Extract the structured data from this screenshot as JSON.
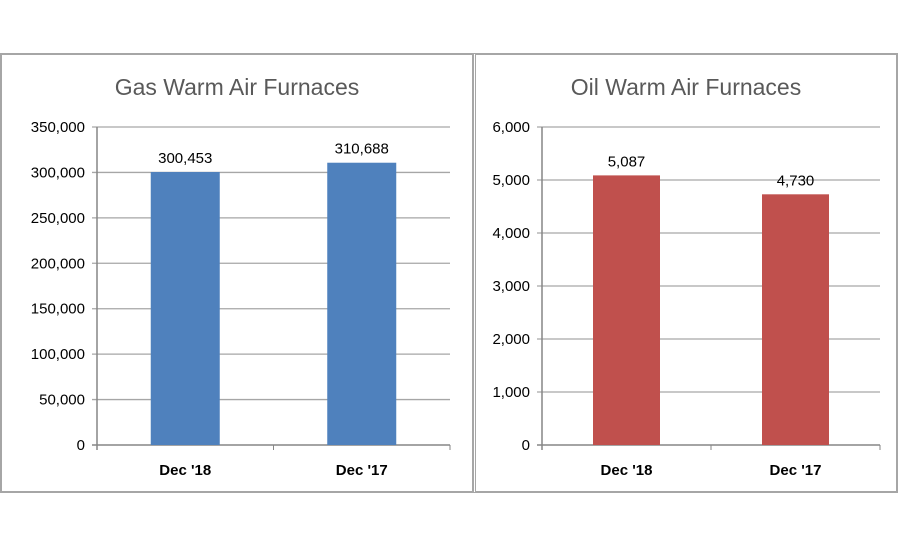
{
  "chart_data": [
    {
      "type": "bar",
      "title": "Gas Warm Air Furnaces",
      "categories": [
        "Dec '18",
        "Dec '17"
      ],
      "values": [
        300453,
        310688
      ],
      "value_labels": [
        "300,453",
        "310,688"
      ],
      "ylim": [
        0,
        350000
      ],
      "yticks": [
        "0",
        "50,000",
        "100,000",
        "150,000",
        "200,000",
        "250,000",
        "300,000",
        "350,000"
      ],
      "grid": true,
      "color": "#4f81bd"
    },
    {
      "type": "bar",
      "title": "Oil Warm Air Furnaces",
      "categories": [
        "Dec '18",
        "Dec '17"
      ],
      "values": [
        5087,
        4730
      ],
      "value_labels": [
        "5,087",
        "4,730"
      ],
      "ylim": [
        0,
        6000
      ],
      "yticks": [
        "0",
        "1,000",
        "2,000",
        "3,000",
        "4,000",
        "5,000",
        "6,000"
      ],
      "grid": true,
      "color": "#c0504d"
    }
  ]
}
